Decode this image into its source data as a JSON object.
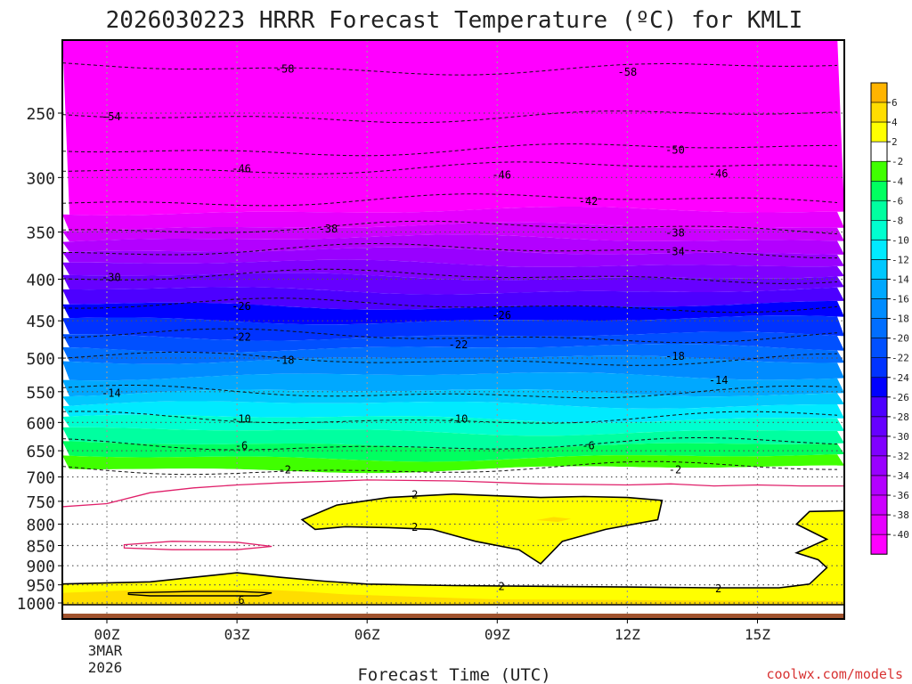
{
  "chart_data": {
    "type": "heatmap",
    "title": "2026030223 HRRR Forecast Temperature (ºC) for KMLI",
    "xlabel": "Forecast Time (UTC)",
    "ylabel": "",
    "credit": "coolwx.com/models",
    "x_ticks": [
      "00Z",
      "03Z",
      "06Z",
      "09Z",
      "12Z",
      "15Z"
    ],
    "x_tick_hours": [
      0,
      3,
      6,
      9,
      12,
      15
    ],
    "x_date_lines": [
      "3MAR",
      "2026"
    ],
    "x_range_hours": [
      -1,
      17
    ],
    "y_ticks": [
      250,
      300,
      350,
      400,
      450,
      500,
      550,
      600,
      650,
      700,
      750,
      800,
      850,
      900,
      950,
      1000
    ],
    "y_range_hPa": [
      200,
      1040
    ],
    "y_scale": "log-pressure",
    "surface_pressure_hPa": 1000,
    "colorbar": {
      "bounds": [
        -42,
        -40,
        -38,
        -36,
        -34,
        -32,
        -30,
        -28,
        -26,
        -24,
        -22,
        -20,
        -18,
        -16,
        -14,
        -12,
        -10,
        -8,
        -6,
        -4,
        -2,
        2,
        4,
        6,
        8
      ],
      "labels": [
        "-40",
        "-38",
        "-36",
        "-34",
        "-32",
        "-30",
        "-28",
        "-26",
        "-24",
        "-22",
        "-20",
        "-18",
        "-16",
        "-14",
        "-12",
        "-10",
        "-8",
        "-6",
        "-4",
        "-2",
        "2",
        "4",
        "6"
      ],
      "colors": [
        "#ff00ff",
        "#e600ff",
        "#cc00ff",
        "#b300ff",
        "#9900ff",
        "#8000ff",
        "#6600ff",
        "#4d00ff",
        "#0000ff",
        "#0033ff",
        "#0050ff",
        "#006eff",
        "#008cff",
        "#00a8ff",
        "#00c8ff",
        "#00eaff",
        "#00ffd0",
        "#00ffa0",
        "#00ff60",
        "#40ff00",
        "#ffffff",
        "#ffff00",
        "#ffdd00",
        "#ffb400"
      ]
    },
    "isotherms": [
      {
        "value": -58,
        "labels": [
          {
            "text": "-58",
            "hour": 4.1,
            "p": 220
          },
          {
            "text": "-58",
            "hour": 12.0,
            "p": 222
          }
        ]
      },
      {
        "value": -54,
        "labels": [
          {
            "text": "-54",
            "hour": 0.1,
            "p": 252
          }
        ]
      },
      {
        "value": -50,
        "labels": [
          {
            "text": "-50",
            "hour": 13.1,
            "p": 277
          }
        ]
      },
      {
        "value": -46,
        "labels": [
          {
            "text": "-46",
            "hour": 3.1,
            "p": 292
          },
          {
            "text": "-46",
            "hour": 9.1,
            "p": 297
          },
          {
            "text": "-46",
            "hour": 14.1,
            "p": 296
          }
        ]
      },
      {
        "value": -42,
        "labels": [
          {
            "text": "-42",
            "hour": 11.1,
            "p": 320
          }
        ]
      },
      {
        "value": -38,
        "labels": [
          {
            "text": "-38",
            "hour": 5.1,
            "p": 346
          },
          {
            "text": "-38",
            "hour": 13.1,
            "p": 350
          }
        ]
      },
      {
        "value": -34,
        "labels": [
          {
            "text": "-34",
            "hour": 13.1,
            "p": 369
          }
        ]
      },
      {
        "value": -30,
        "labels": [
          {
            "text": "-30",
            "hour": 0.1,
            "p": 397
          }
        ]
      },
      {
        "value": -26,
        "labels": [
          {
            "text": "-26",
            "hour": 3.1,
            "p": 431
          },
          {
            "text": "-26",
            "hour": 9.1,
            "p": 442
          }
        ]
      },
      {
        "value": -22,
        "labels": [
          {
            "text": "-22",
            "hour": 3.1,
            "p": 470
          },
          {
            "text": "-22",
            "hour": 8.1,
            "p": 480
          }
        ]
      },
      {
        "value": -18,
        "labels": [
          {
            "text": "-18",
            "hour": 4.1,
            "p": 502
          },
          {
            "text": "-18",
            "hour": 13.1,
            "p": 496
          }
        ]
      },
      {
        "value": -14,
        "labels": [
          {
            "text": "-14",
            "hour": 0.1,
            "p": 551
          },
          {
            "text": "-14",
            "hour": 14.1,
            "p": 531
          }
        ]
      },
      {
        "value": -10,
        "labels": [
          {
            "text": "-10",
            "hour": 3.1,
            "p": 593
          },
          {
            "text": "-10",
            "hour": 8.1,
            "p": 593
          }
        ]
      },
      {
        "value": -6,
        "labels": [
          {
            "text": "-6",
            "hour": 3.1,
            "p": 639
          },
          {
            "text": "-6",
            "hour": 11.1,
            "p": 639
          }
        ]
      },
      {
        "value": -2,
        "labels": [
          {
            "text": "-2",
            "hour": 4.1,
            "p": 684
          },
          {
            "text": "-2",
            "hour": 13.1,
            "p": 684
          }
        ]
      },
      {
        "value": 2,
        "labels": [
          {
            "text": "2",
            "hour": 7.1,
            "p": 734
          },
          {
            "text": "2",
            "hour": 7.1,
            "p": 805
          },
          {
            "text": "2",
            "hour": 9.1,
            "p": 952
          },
          {
            "text": "2",
            "hour": 14.1,
            "p": 958
          }
        ]
      },
      {
        "value": 6,
        "labels": [
          {
            "text": "6",
            "hour": 3.1,
            "p": 990
          }
        ]
      }
    ]
  }
}
